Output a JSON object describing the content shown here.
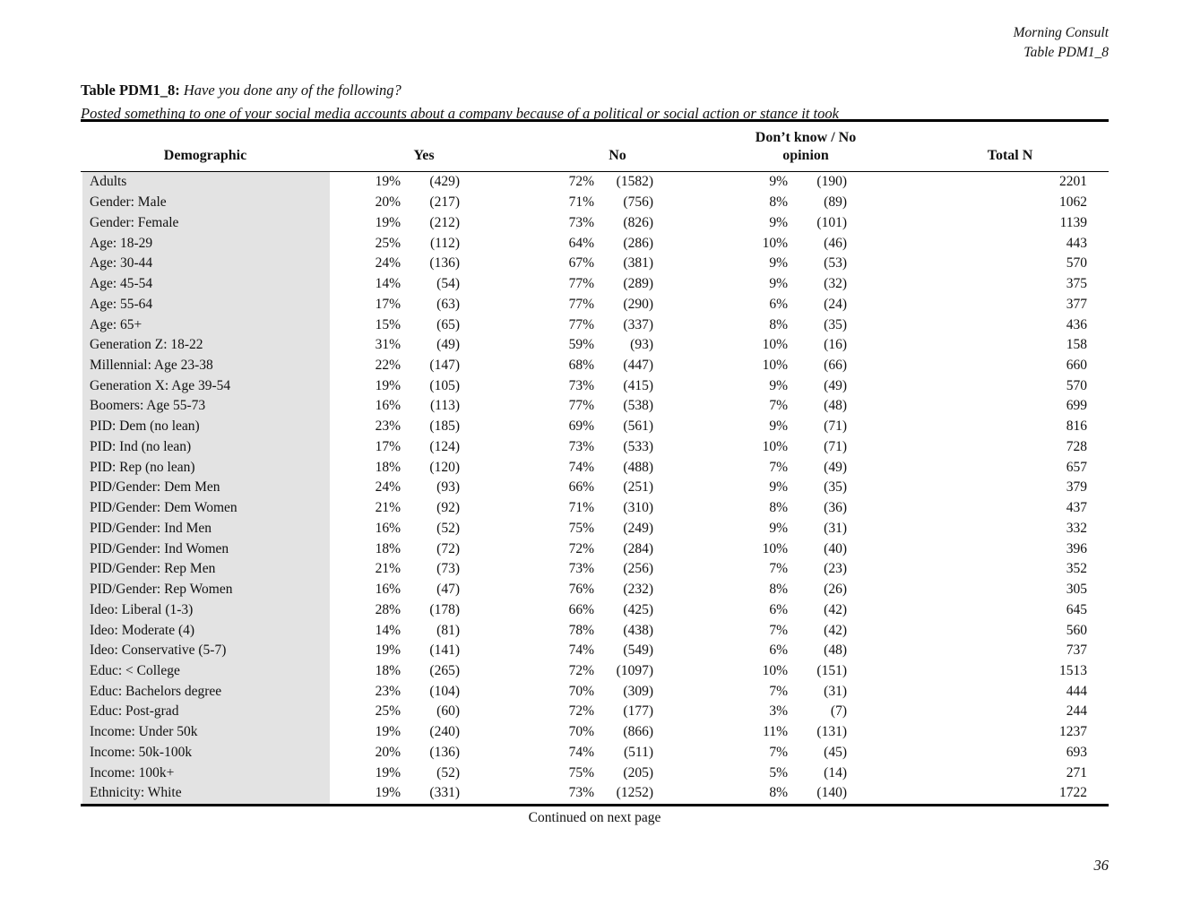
{
  "page": {
    "brand": "Morning Consult",
    "table_ref": "Table PDM1_8",
    "page_number": "36"
  },
  "title": {
    "label": "Table PDM1_8:",
    "question": "Have you done any of the following?",
    "subtitle": "Posted something to one of your social media accounts about a company because of a political or social action or stance it took"
  },
  "table": {
    "columns": {
      "demographic": "Demographic",
      "yes": "Yes",
      "no": "No",
      "dk": "Don’t know / No opinion",
      "total": "Total N"
    },
    "rows": [
      {
        "demographic": "Adults",
        "yes_pct": "19%",
        "yes_n": "(429)",
        "no_pct": "72%",
        "no_n": "(1582)",
        "dk_pct": "9%",
        "dk_n": "(190)",
        "total": "2201"
      },
      {
        "demographic": "Gender: Male",
        "yes_pct": "20%",
        "yes_n": "(217)",
        "no_pct": "71%",
        "no_n": "(756)",
        "dk_pct": "8%",
        "dk_n": "(89)",
        "total": "1062"
      },
      {
        "demographic": "Gender: Female",
        "yes_pct": "19%",
        "yes_n": "(212)",
        "no_pct": "73%",
        "no_n": "(826)",
        "dk_pct": "9%",
        "dk_n": "(101)",
        "total": "1139"
      },
      {
        "demographic": "Age: 18-29",
        "yes_pct": "25%",
        "yes_n": "(112)",
        "no_pct": "64%",
        "no_n": "(286)",
        "dk_pct": "10%",
        "dk_n": "(46)",
        "total": "443"
      },
      {
        "demographic": "Age: 30-44",
        "yes_pct": "24%",
        "yes_n": "(136)",
        "no_pct": "67%",
        "no_n": "(381)",
        "dk_pct": "9%",
        "dk_n": "(53)",
        "total": "570"
      },
      {
        "demographic": "Age: 45-54",
        "yes_pct": "14%",
        "yes_n": "(54)",
        "no_pct": "77%",
        "no_n": "(289)",
        "dk_pct": "9%",
        "dk_n": "(32)",
        "total": "375"
      },
      {
        "demographic": "Age: 55-64",
        "yes_pct": "17%",
        "yes_n": "(63)",
        "no_pct": "77%",
        "no_n": "(290)",
        "dk_pct": "6%",
        "dk_n": "(24)",
        "total": "377"
      },
      {
        "demographic": "Age: 65+",
        "yes_pct": "15%",
        "yes_n": "(65)",
        "no_pct": "77%",
        "no_n": "(337)",
        "dk_pct": "8%",
        "dk_n": "(35)",
        "total": "436"
      },
      {
        "demographic": "Generation Z: 18-22",
        "yes_pct": "31%",
        "yes_n": "(49)",
        "no_pct": "59%",
        "no_n": "(93)",
        "dk_pct": "10%",
        "dk_n": "(16)",
        "total": "158"
      },
      {
        "demographic": "Millennial: Age 23-38",
        "yes_pct": "22%",
        "yes_n": "(147)",
        "no_pct": "68%",
        "no_n": "(447)",
        "dk_pct": "10%",
        "dk_n": "(66)",
        "total": "660"
      },
      {
        "demographic": "Generation X: Age 39-54",
        "yes_pct": "19%",
        "yes_n": "(105)",
        "no_pct": "73%",
        "no_n": "(415)",
        "dk_pct": "9%",
        "dk_n": "(49)",
        "total": "570"
      },
      {
        "demographic": "Boomers: Age 55-73",
        "yes_pct": "16%",
        "yes_n": "(113)",
        "no_pct": "77%",
        "no_n": "(538)",
        "dk_pct": "7%",
        "dk_n": "(48)",
        "total": "699"
      },
      {
        "demographic": "PID: Dem (no lean)",
        "yes_pct": "23%",
        "yes_n": "(185)",
        "no_pct": "69%",
        "no_n": "(561)",
        "dk_pct": "9%",
        "dk_n": "(71)",
        "total": "816"
      },
      {
        "demographic": "PID: Ind (no lean)",
        "yes_pct": "17%",
        "yes_n": "(124)",
        "no_pct": "73%",
        "no_n": "(533)",
        "dk_pct": "10%",
        "dk_n": "(71)",
        "total": "728"
      },
      {
        "demographic": "PID: Rep (no lean)",
        "yes_pct": "18%",
        "yes_n": "(120)",
        "no_pct": "74%",
        "no_n": "(488)",
        "dk_pct": "7%",
        "dk_n": "(49)",
        "total": "657"
      },
      {
        "demographic": "PID/Gender: Dem Men",
        "yes_pct": "24%",
        "yes_n": "(93)",
        "no_pct": "66%",
        "no_n": "(251)",
        "dk_pct": "9%",
        "dk_n": "(35)",
        "total": "379"
      },
      {
        "demographic": "PID/Gender: Dem Women",
        "yes_pct": "21%",
        "yes_n": "(92)",
        "no_pct": "71%",
        "no_n": "(310)",
        "dk_pct": "8%",
        "dk_n": "(36)",
        "total": "437"
      },
      {
        "demographic": "PID/Gender: Ind Men",
        "yes_pct": "16%",
        "yes_n": "(52)",
        "no_pct": "75%",
        "no_n": "(249)",
        "dk_pct": "9%",
        "dk_n": "(31)",
        "total": "332"
      },
      {
        "demographic": "PID/Gender: Ind Women",
        "yes_pct": "18%",
        "yes_n": "(72)",
        "no_pct": "72%",
        "no_n": "(284)",
        "dk_pct": "10%",
        "dk_n": "(40)",
        "total": "396"
      },
      {
        "demographic": "PID/Gender: Rep Men",
        "yes_pct": "21%",
        "yes_n": "(73)",
        "no_pct": "73%",
        "no_n": "(256)",
        "dk_pct": "7%",
        "dk_n": "(23)",
        "total": "352"
      },
      {
        "demographic": "PID/Gender: Rep Women",
        "yes_pct": "16%",
        "yes_n": "(47)",
        "no_pct": "76%",
        "no_n": "(232)",
        "dk_pct": "8%",
        "dk_n": "(26)",
        "total": "305"
      },
      {
        "demographic": "Ideo: Liberal (1-3)",
        "yes_pct": "28%",
        "yes_n": "(178)",
        "no_pct": "66%",
        "no_n": "(425)",
        "dk_pct": "6%",
        "dk_n": "(42)",
        "total": "645"
      },
      {
        "demographic": "Ideo: Moderate (4)",
        "yes_pct": "14%",
        "yes_n": "(81)",
        "no_pct": "78%",
        "no_n": "(438)",
        "dk_pct": "7%",
        "dk_n": "(42)",
        "total": "560"
      },
      {
        "demographic": "Ideo: Conservative (5-7)",
        "yes_pct": "19%",
        "yes_n": "(141)",
        "no_pct": "74%",
        "no_n": "(549)",
        "dk_pct": "6%",
        "dk_n": "(48)",
        "total": "737"
      },
      {
        "demographic": "Educ: < College",
        "yes_pct": "18%",
        "yes_n": "(265)",
        "no_pct": "72%",
        "no_n": "(1097)",
        "dk_pct": "10%",
        "dk_n": "(151)",
        "total": "1513"
      },
      {
        "demographic": "Educ: Bachelors degree",
        "yes_pct": "23%",
        "yes_n": "(104)",
        "no_pct": "70%",
        "no_n": "(309)",
        "dk_pct": "7%",
        "dk_n": "(31)",
        "total": "444"
      },
      {
        "demographic": "Educ: Post-grad",
        "yes_pct": "25%",
        "yes_n": "(60)",
        "no_pct": "72%",
        "no_n": "(177)",
        "dk_pct": "3%",
        "dk_n": "(7)",
        "total": "244"
      },
      {
        "demographic": "Income: Under 50k",
        "yes_pct": "19%",
        "yes_n": "(240)",
        "no_pct": "70%",
        "no_n": "(866)",
        "dk_pct": "11%",
        "dk_n": "(131)",
        "total": "1237"
      },
      {
        "demographic": "Income: 50k-100k",
        "yes_pct": "20%",
        "yes_n": "(136)",
        "no_pct": "74%",
        "no_n": "(511)",
        "dk_pct": "7%",
        "dk_n": "(45)",
        "total": "693"
      },
      {
        "demographic": "Income: 100k+",
        "yes_pct": "19%",
        "yes_n": "(52)",
        "no_pct": "75%",
        "no_n": "(205)",
        "dk_pct": "5%",
        "dk_n": "(14)",
        "total": "271"
      },
      {
        "demographic": "Ethnicity: White",
        "yes_pct": "19%",
        "yes_n": "(331)",
        "no_pct": "73%",
        "no_n": "(1252)",
        "dk_pct": "8%",
        "dk_n": "(140)",
        "total": "1722"
      }
    ]
  },
  "footer": {
    "continued": "Continued on next page"
  }
}
